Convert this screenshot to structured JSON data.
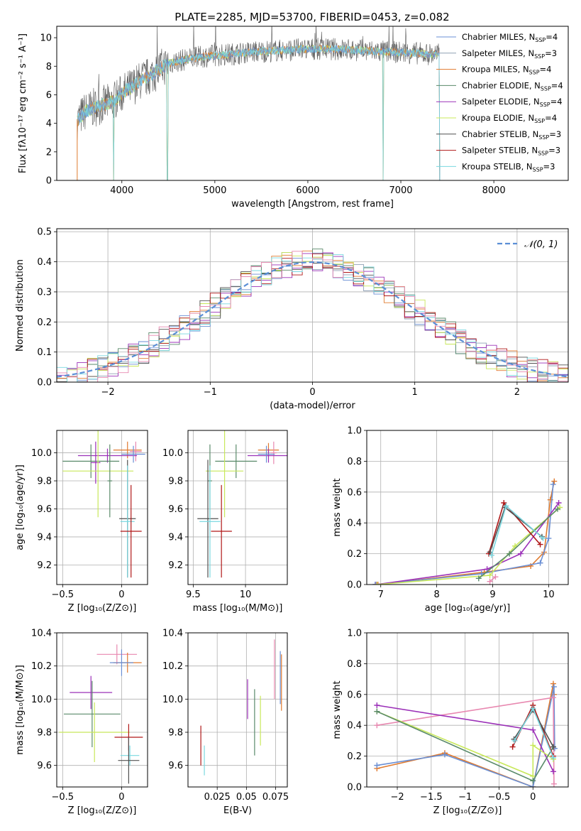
{
  "figure_title": "PLATE=2285, MJD=53700, FIBERID=0453, z=0.082",
  "colors": {
    "Chabrier MILES": "#6a8fd4",
    "Salpeter MILES": "#8fa0b4",
    "Kroupa MILES": "#e07a2e",
    "Chabrier ELODIE": "#5a8a6a",
    "Salpeter ELODIE": "#9b30b8",
    "Kroupa ELODIE": "#c8e85a",
    "Chabrier STELIB": "#505050",
    "Salpeter STELIB": "#b01818",
    "Kroupa STELIB": "#7ad8e0",
    "Kroupa MILES pink": "#e888b0",
    "normal": "#5b8fd6",
    "grid": "#b0b0b0"
  },
  "chart_data": [
    {
      "id": "spectrum",
      "type": "line",
      "xlabel": "wavelength [Angstrom, rest frame]",
      "ylabel": "Flux [fλ10⁻¹⁷ erg cm⁻² s⁻¹ A⁻¹]",
      "xlim": [
        3300,
        8800
      ],
      "ylim": [
        0,
        10.8
      ],
      "xticks": [
        4000,
        5000,
        6000,
        7000,
        8000
      ],
      "yticks": [
        0,
        2,
        4,
        6,
        8,
        10
      ],
      "grid": false,
      "legend_position": "right",
      "legend": [
        {
          "name": "Chabrier MILES",
          "nssp": "4"
        },
        {
          "name": "Salpeter MILES",
          "nssp": "3"
        },
        {
          "name": "Kroupa MILES",
          "nssp": "4"
        },
        {
          "name": "Chabrier ELODIE",
          "nssp": "4"
        },
        {
          "name": "Salpeter ELODIE",
          "nssp": "4"
        },
        {
          "name": "Kroupa ELODIE",
          "nssp": "4"
        },
        {
          "name": "Chabrier STELIB",
          "nssp": "3"
        },
        {
          "name": "Salpeter STELIB",
          "nssp": "3"
        },
        {
          "name": "Kroupa STELIB",
          "nssp": "3"
        }
      ],
      "continuum": [
        [
          3520,
          4.2
        ],
        [
          3600,
          4.8
        ],
        [
          3700,
          5.1
        ],
        [
          3800,
          5.3
        ],
        [
          3900,
          5.5
        ],
        [
          4000,
          6.1
        ],
        [
          4100,
          6.5
        ],
        [
          4200,
          7.0
        ],
        [
          4300,
          7.3
        ],
        [
          4400,
          7.8
        ],
        [
          4500,
          8.2
        ],
        [
          4700,
          8.5
        ],
        [
          4900,
          8.7
        ],
        [
          5100,
          8.8
        ],
        [
          5400,
          9.0
        ],
        [
          5700,
          9.1
        ],
        [
          6000,
          9.2
        ],
        [
          6300,
          9.2
        ],
        [
          6600,
          9.1
        ],
        [
          6900,
          9.0
        ],
        [
          7200,
          8.9
        ],
        [
          7420,
          8.8
        ]
      ],
      "dropouts": [
        3910,
        4490,
        6810,
        7420
      ]
    },
    {
      "id": "residuals",
      "type": "histogram",
      "xlabel": "(data-model)/error",
      "ylabel": "Normed distribution",
      "xlim": [
        -2.5,
        2.5
      ],
      "ylim": [
        0,
        0.51
      ],
      "xticks": [
        -2,
        -1,
        0,
        1,
        2
      ],
      "yticks": [
        0.0,
        0.1,
        0.2,
        0.3,
        0.4,
        0.5
      ],
      "grid": true,
      "legend": "𝒩(0, 1)",
      "legend_position": "top-right",
      "bin_width": 0.1
    },
    {
      "id": "age_vs_Z",
      "type": "scatter",
      "xlabel": "Z [log₁₀(Z/Z⊙)]",
      "ylabel": "age  [log₁₀(age/yr)]",
      "xlim": [
        -0.55,
        0.22
      ],
      "ylim": [
        9.06,
        10.16
      ],
      "xticks": [
        -0.5,
        0.0
      ],
      "yticks": [
        9.2,
        9.4,
        9.6,
        9.8,
        10.0
      ],
      "grid": true,
      "points": [
        {
          "s": "Kroupa MILES",
          "x": 0.05,
          "y": 10.02,
          "xe": 0.12,
          "ye": 0.06
        },
        {
          "s": "Kroupa MILES pink",
          "x": 0.12,
          "y": 10.01,
          "xe": 0.05,
          "ye": 0.07
        },
        {
          "s": "Salpeter ELODIE",
          "x": -0.12,
          "y": 9.98,
          "xe": 0.25,
          "ye": 0.05
        },
        {
          "s": "Chabrier MILES",
          "x": 0.1,
          "y": 9.99,
          "xe": 0.1,
          "ye": 0.06
        },
        {
          "s": "Chabrier ELODIE",
          "x": -0.26,
          "y": 9.94,
          "xe": 0.24,
          "ye": 0.12
        },
        {
          "s": "Salpeter ELODIE",
          "x": -0.22,
          "y": 9.93,
          "xe": 0.04,
          "ye": 0.15
        },
        {
          "s": "Kroupa ELODIE",
          "x": -0.2,
          "y": 9.87,
          "xe": 0.3,
          "ye": 0.33
        },
        {
          "s": "Chabrier ELODIE",
          "x": -0.1,
          "y": 9.8,
          "xe": 0.02,
          "ye": 0.26
        },
        {
          "s": "Chabrier STELIB",
          "x": 0.05,
          "y": 9.53,
          "xe": 0.07,
          "ye": 0.42
        },
        {
          "s": "Kroupa STELIB",
          "x": 0.05,
          "y": 9.51,
          "xe": 0.06,
          "ye": 0.4
        },
        {
          "s": "Salpeter STELIB",
          "x": 0.08,
          "y": 9.44,
          "xe": 0.09,
          "ye": 0.33
        }
      ]
    },
    {
      "id": "age_vs_mass",
      "type": "scatter",
      "xlabel": "mass [log₁₀(M/M⊙)]",
      "ylabel": "",
      "xlim": [
        9.45,
        10.4
      ],
      "ylim": [
        9.06,
        10.16
      ],
      "xticks": [
        9.5,
        10.0
      ],
      "yticks": [
        9.2,
        9.4,
        9.6,
        9.8,
        10.0
      ],
      "grid": true,
      "points": [
        {
          "s": "Kroupa MILES",
          "x": 10.22,
          "y": 10.02,
          "xe": 0.1,
          "ye": 0.05
        },
        {
          "s": "Kroupa MILES pink",
          "x": 10.27,
          "y": 10.0,
          "xe": 0.03,
          "ye": 0.08
        },
        {
          "s": "Salpeter ELODIE",
          "x": 10.22,
          "y": 9.98,
          "xe": 0.2,
          "ye": 0.05
        },
        {
          "s": "Chabrier MILES",
          "x": 10.2,
          "y": 9.99,
          "xe": 0.08,
          "ye": 0.06
        },
        {
          "s": "Chabrier ELODIE",
          "x": 9.91,
          "y": 9.94,
          "xe": 0.2,
          "ye": 0.12
        },
        {
          "s": "Kroupa ELODIE",
          "x": 9.8,
          "y": 9.87,
          "xe": 0.18,
          "ye": 0.33
        },
        {
          "s": "Chabrier ELODIE",
          "x": 9.66,
          "y": 9.8,
          "xe": 0.02,
          "ye": 0.26
        },
        {
          "s": "Chabrier STELIB",
          "x": 9.64,
          "y": 9.53,
          "xe": 0.1,
          "ye": 0.42
        },
        {
          "s": "Kroupa STELIB",
          "x": 9.66,
          "y": 9.51,
          "xe": 0.1,
          "ye": 0.4
        },
        {
          "s": "Salpeter STELIB",
          "x": 9.77,
          "y": 9.44,
          "xe": 0.1,
          "ye": 0.33
        }
      ]
    },
    {
      "id": "weight_vs_age",
      "type": "line",
      "xlabel": "age  [log₁₀(age/yr)]",
      "ylabel": "mass weight",
      "xlim": [
        6.75,
        10.35
      ],
      "ylim": [
        0,
        1
      ],
      "xticks": [
        7,
        8,
        9,
        10
      ],
      "yticks": [
        0.0,
        0.2,
        0.4,
        0.6,
        0.8,
        1.0
      ],
      "grid": true,
      "series": [
        {
          "s": "Kroupa MILES",
          "x": [
            6.95,
            8.85,
            9.68,
            9.92,
            10.03,
            10.1
          ],
          "y": [
            0.0,
            0.08,
            0.12,
            0.21,
            0.55,
            0.67
          ]
        },
        {
          "s": "Chabrier MILES",
          "x": [
            6.9,
            8.8,
            9.85,
            10.0,
            10.08
          ],
          "y": [
            0.0,
            0.07,
            0.14,
            0.3,
            0.65
          ]
        },
        {
          "s": "Salpeter ELODIE",
          "x": [
            6.92,
            8.9,
            9.5,
            10.18
          ],
          "y": [
            0.0,
            0.1,
            0.2,
            0.53
          ]
        },
        {
          "s": "Kroupa ELODIE",
          "x": [
            6.93,
            8.95,
            9.4,
            10.2
          ],
          "y": [
            0.0,
            0.06,
            0.25,
            0.5
          ]
        },
        {
          "s": "Chabrier ELODIE",
          "x": [
            8.75,
            9.3,
            10.16
          ],
          "y": [
            0.04,
            0.2,
            0.49
          ]
        },
        {
          "s": "Salpeter STELIB",
          "x": [
            8.93,
            9.2,
            9.85
          ],
          "y": [
            0.2,
            0.53,
            0.26
          ]
        },
        {
          "s": "Chabrier STELIB",
          "x": [
            8.95,
            9.22,
            9.88
          ],
          "y": [
            0.21,
            0.5,
            0.31
          ]
        },
        {
          "s": "Kroupa STELIB",
          "x": [
            8.98,
            9.24,
            9.9
          ],
          "y": [
            0.19,
            0.51,
            0.3
          ]
        },
        {
          "s": "Kroupa MILES pink",
          "x": [
            8.95,
            9.05
          ],
          "y": [
            0.02,
            0.05
          ]
        }
      ]
    },
    {
      "id": "mass_vs_Z",
      "type": "scatter",
      "xlabel": "Z [log₁₀(Z/Z⊙)]",
      "ylabel": "mass [log₁₀(M/M⊙)]",
      "xlim": [
        -0.55,
        0.22
      ],
      "ylim": [
        9.47,
        10.4
      ],
      "xticks": [
        -0.5,
        0.0
      ],
      "yticks": [
        9.6,
        9.8,
        10.0,
        10.2,
        10.4
      ],
      "grid": true,
      "points": [
        {
          "s": "Kroupa MILES pink",
          "x": -0.04,
          "y": 10.27,
          "xe": 0.17,
          "ye": 0.06
        },
        {
          "s": "Kroupa MILES",
          "x": 0.05,
          "y": 10.22,
          "xe": 0.12,
          "ye": 0.06
        },
        {
          "s": "Chabrier MILES",
          "x": 0.0,
          "y": 10.22,
          "xe": 0.1,
          "ye": 0.08
        },
        {
          "s": "Salpeter ELODIE",
          "x": -0.26,
          "y": 10.04,
          "xe": 0.18,
          "ye": 0.1
        },
        {
          "s": "Chabrier ELODIE",
          "x": -0.25,
          "y": 9.91,
          "xe": 0.24,
          "ye": 0.2
        },
        {
          "s": "Kroupa ELODIE",
          "x": -0.23,
          "y": 9.8,
          "xe": 0.3,
          "ye": 0.18
        },
        {
          "s": "Salpeter STELIB",
          "x": 0.06,
          "y": 9.77,
          "xe": 0.12,
          "ye": 0.08
        },
        {
          "s": "Kroupa STELIB",
          "x": 0.07,
          "y": 9.66,
          "xe": 0.08,
          "ye": 0.06
        },
        {
          "s": "Chabrier STELIB",
          "x": 0.06,
          "y": 9.63,
          "xe": 0.09,
          "ye": 0.14
        }
      ]
    },
    {
      "id": "mass_vs_ebv",
      "type": "scatter",
      "xlabel": "E(B-V)",
      "ylabel": "",
      "xlim": [
        0.0,
        0.085
      ],
      "ylim": [
        9.47,
        10.4
      ],
      "xticks": [
        0.025,
        0.05,
        0.075
      ],
      "yticks": [
        9.6,
        9.8,
        10.0,
        10.2,
        10.4
      ],
      "grid": true,
      "points": [
        {
          "s": "Salpeter STELIB",
          "x": 0.011,
          "y": 9.72,
          "ye": 0.12
        },
        {
          "s": "Kroupa STELIB",
          "x": 0.014,
          "y": 9.63,
          "ye": 0.09
        },
        {
          "s": "Salpeter ELODIE",
          "x": 0.051,
          "y": 10.0,
          "ye": 0.12
        },
        {
          "s": "Chabrier ELODIE",
          "x": 0.057,
          "y": 9.86,
          "ye": 0.2
        },
        {
          "s": "Kroupa ELODIE",
          "x": 0.062,
          "y": 9.87,
          "ye": 0.15
        },
        {
          "s": "Kroupa MILES pink",
          "x": 0.074,
          "y": 10.18,
          "ye": 0.18
        },
        {
          "s": "Chabrier MILES",
          "x": 0.079,
          "y": 10.13,
          "ye": 0.16
        },
        {
          "s": "Kroupa MILES",
          "x": 0.08,
          "y": 10.1,
          "ye": 0.17
        }
      ]
    },
    {
      "id": "weight_vs_Z",
      "type": "line",
      "xlabel": "Z [log₁₀(Z/Z⊙)]",
      "ylabel": "mass weight",
      "xlim": [
        -2.45,
        0.52
      ],
      "ylim": [
        0,
        1
      ],
      "xticks": [
        -2.0,
        -1.5,
        -1.0,
        -0.5,
        0.0
      ],
      "yticks": [
        0.0,
        0.2,
        0.4,
        0.6,
        0.8,
        1.0
      ],
      "grid": true,
      "series": [
        {
          "s": "Kroupa MILES",
          "x": [
            -2.3,
            -1.3,
            0.0,
            0.3,
            0.31
          ],
          "y": [
            0.12,
            0.22,
            0.0,
            0.67,
            0.6
          ]
        },
        {
          "s": "Chabrier MILES",
          "x": [
            -2.3,
            -1.3,
            0.0,
            0.31,
            0.32
          ],
          "y": [
            0.14,
            0.21,
            0.0,
            0.65,
            0.25
          ]
        },
        {
          "s": "Kroupa MILES pink",
          "x": [
            -2.3,
            0.3,
            0.31
          ],
          "y": [
            0.4,
            0.58,
            0.02
          ]
        },
        {
          "s": "Salpeter ELODIE",
          "x": [
            -2.3,
            0.0,
            0.3
          ],
          "y": [
            0.53,
            0.37,
            0.1
          ]
        },
        {
          "s": "Kroupa ELODIE",
          "x": [
            -2.3,
            0.0,
            0.0,
            0.3
          ],
          "y": [
            0.49,
            0.07,
            0.27,
            0.18
          ]
        },
        {
          "s": "Chabrier ELODIE",
          "x": [
            -2.3,
            0.0,
            0.3
          ],
          "y": [
            0.49,
            0.04,
            0.26
          ]
        },
        {
          "s": "Salpeter STELIB",
          "x": [
            -0.3,
            0.0,
            0.3
          ],
          "y": [
            0.26,
            0.53,
            0.2
          ]
        },
        {
          "s": "Chabrier STELIB",
          "x": [
            -0.28,
            0.0,
            0.3
          ],
          "y": [
            0.31,
            0.5,
            0.26
          ]
        },
        {
          "s": "Kroupa STELIB",
          "x": [
            -0.27,
            0.0,
            0.3
          ],
          "y": [
            0.3,
            0.51,
            0.19
          ]
        }
      ]
    }
  ]
}
